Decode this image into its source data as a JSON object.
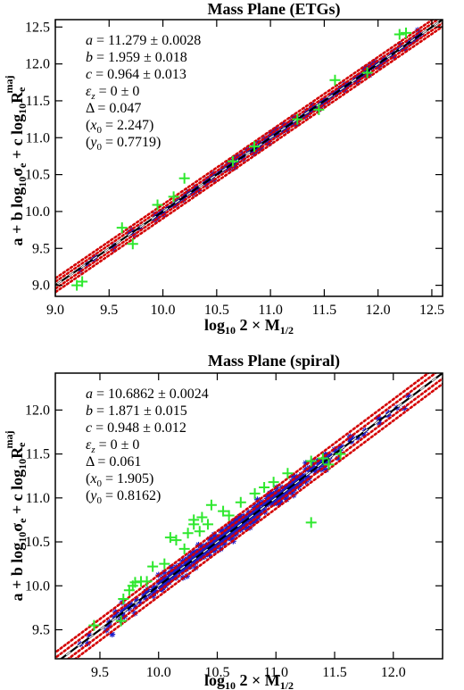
{
  "chart_data": [
    {
      "type": "scatter",
      "title": "Mass Plane (ETGs)",
      "xlabel": "log10 2×M1/2",
      "ylabel": "a + b log10σe + c log10Re^maj",
      "xlim": [
        9.0,
        12.6
      ],
      "ylim": [
        8.85,
        12.6
      ],
      "xticks": [
        "9.0",
        "9.5",
        "10.0",
        "10.5",
        "11.0",
        "11.5",
        "12.0",
        "12.5"
      ],
      "yticks": [
        "9.0",
        "9.5",
        "10.0",
        "10.5",
        "11.0",
        "11.5",
        "12.0",
        "12.5"
      ],
      "annotations": [
        "a = 11.279 ± 0.0028",
        "b = 1.959 ± 0.018",
        "c = 0.964 ± 0.013",
        "εz = 0 ± 0",
        "Δ = 0.047",
        "(x0 = 2.247)",
        "(y0 = 0.7719)"
      ],
      "lines": [
        {
          "style": "solid",
          "color": "#000000",
          "offset": 0.0
        },
        {
          "style": "dashed",
          "color": "#000000",
          "offset": 0.0
        },
        {
          "style": "dotted",
          "color": "#d40000",
          "offset": 0.047
        },
        {
          "style": "dotted",
          "color": "#d40000",
          "offset": -0.047
        },
        {
          "style": "dotted",
          "color": "#d40000",
          "offset": 0.094
        },
        {
          "style": "dotted",
          "color": "#d40000",
          "offset": -0.094
        }
      ],
      "series": [
        {
          "marker": "blue star",
          "color": "#1e1ec8",
          "density": [
            [
              9.1,
              9.3,
              2
            ],
            [
              9.3,
              9.6,
              4
            ],
            [
              9.6,
              10.0,
              10
            ],
            [
              10.0,
              10.5,
              28
            ],
            [
              10.5,
              11.0,
              48
            ],
            [
              11.0,
              11.5,
              54
            ],
            [
              11.5,
              12.0,
              46
            ],
            [
              12.0,
              12.4,
              22
            ]
          ],
          "scatter": 0.03
        },
        {
          "marker": "green cross",
          "color": "#2ee82e",
          "points": [
            [
              9.2,
              9.0
            ],
            [
              9.25,
              9.05
            ],
            [
              9.72,
              9.56
            ],
            [
              9.62,
              9.78
            ],
            [
              9.95,
              10.09
            ],
            [
              10.2,
              10.45
            ],
            [
              10.65,
              10.68
            ],
            [
              10.85,
              10.88
            ],
            [
              11.25,
              11.25
            ],
            [
              11.6,
              11.78
            ],
            [
              11.9,
              11.88
            ],
            [
              12.2,
              12.4
            ],
            [
              12.26,
              12.42
            ],
            [
              11.45,
              11.38
            ],
            [
              10.1,
              10.2
            ]
          ]
        }
      ]
    },
    {
      "type": "scatter",
      "title": "Mass Plane (spiral)",
      "xlabel": "log10 2×M1/2",
      "ylabel": "a + b log10σe + c log10Re^maj",
      "xlim": [
        9.12,
        12.42
      ],
      "ylim": [
        9.17,
        12.42
      ],
      "xticks": [
        "9.5",
        "10.0",
        "10.5",
        "11.0",
        "11.5",
        "12.0"
      ],
      "yticks": [
        "9.5",
        "10.0",
        "10.5",
        "11.0",
        "11.5",
        "12.0"
      ],
      "annotations": [
        "a = 10.6862 ± 0.0024",
        "b = 1.871 ± 0.015",
        "c = 0.948 ± 0.012",
        "εz = 0 ± 0",
        "Δ = 0.061",
        "(x0 = 1.905)",
        "(y0 = 0.8162)"
      ],
      "lines": [
        {
          "style": "solid",
          "color": "#000000",
          "offset": 0.0
        },
        {
          "style": "dashed",
          "color": "#000000",
          "offset": 0.0
        },
        {
          "style": "dotted",
          "color": "#d40000",
          "offset": 0.061
        },
        {
          "style": "dotted",
          "color": "#d40000",
          "offset": -0.061
        },
        {
          "style": "dotted",
          "color": "#d40000",
          "offset": 0.122
        },
        {
          "style": "dotted",
          "color": "#d40000",
          "offset": -0.122
        }
      ],
      "series": [
        {
          "marker": "blue star",
          "color": "#1e1ec8",
          "density": [
            [
              9.3,
              9.6,
              6
            ],
            [
              9.6,
              10.0,
              30
            ],
            [
              10.0,
              10.4,
              110
            ],
            [
              10.4,
              10.8,
              170
            ],
            [
              10.8,
              11.2,
              140
            ],
            [
              11.2,
              11.5,
              50
            ],
            [
              11.5,
              11.9,
              16
            ],
            [
              11.9,
              12.2,
              5
            ]
          ],
          "scatter": 0.045
        },
        {
          "marker": "green cross",
          "color": "#2ee82e",
          "points": [
            [
              9.45,
              9.55
            ],
            [
              9.75,
              9.95
            ],
            [
              9.8,
              10.04
            ],
            [
              9.85,
              10.05
            ],
            [
              9.9,
              10.05
            ],
            [
              9.95,
              10.22
            ],
            [
              10.05,
              10.25
            ],
            [
              10.1,
              10.55
            ],
            [
              10.25,
              10.6
            ],
            [
              10.3,
              10.7
            ],
            [
              10.35,
              10.62
            ],
            [
              10.37,
              10.78
            ],
            [
              10.42,
              10.7
            ],
            [
              10.55,
              10.85
            ],
            [
              10.6,
              10.8
            ],
            [
              10.7,
              10.95
            ],
            [
              10.82,
              11.05
            ],
            [
              10.9,
              11.12
            ],
            [
              11.3,
              11.42
            ],
            [
              11.4,
              11.45
            ],
            [
              11.45,
              11.38
            ],
            [
              11.55,
              11.5
            ],
            [
              11.3,
              10.72
            ],
            [
              11.1,
              11.28
            ],
            [
              10.45,
              10.92
            ],
            [
              10.3,
              10.75
            ],
            [
              9.7,
              9.85
            ],
            [
              9.78,
              10.0
            ],
            [
              10.15,
              10.52
            ],
            [
              10.22,
              10.42
            ],
            [
              10.98,
              11.18
            ],
            [
              9.68,
              9.6
            ]
          ]
        }
      ]
    }
  ]
}
